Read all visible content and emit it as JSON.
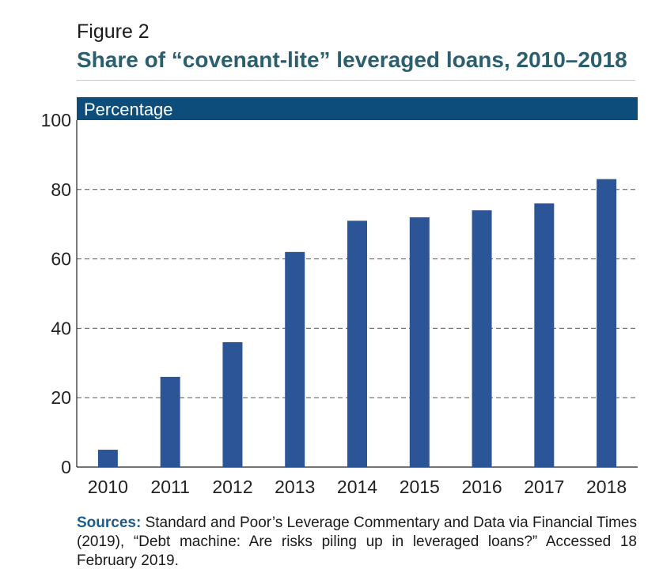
{
  "header": {
    "figure_label": "Figure 2",
    "title": "Share of “covenant-lite” leveraged loans, 2010–2018"
  },
  "chart_data": {
    "type": "bar",
    "title": "Share of “covenant-lite” leveraged loans, 2010–2018",
    "ylabel": "Percentage",
    "xlabel": "",
    "categories": [
      "2010",
      "2011",
      "2012",
      "2013",
      "2014",
      "2015",
      "2016",
      "2017",
      "2018"
    ],
    "values": [
      5,
      26,
      36,
      62,
      71,
      72,
      74,
      76,
      83
    ],
    "ylim": [
      0,
      100
    ],
    "yticks": [
      0,
      20,
      40,
      60,
      80,
      100
    ],
    "grid": "dashed horizontal",
    "colors": {
      "bar": "#2c5597",
      "header_band": "#0d4d7c",
      "header_text": "#ffffff"
    }
  },
  "sources": {
    "label": "Sources:",
    "text": " Standard and Poor’s Leverage Commentary and Data via Financial Times (2019), “Debt machine: Are risks piling up in leveraged loans?” Accessed 18 February 2019."
  }
}
